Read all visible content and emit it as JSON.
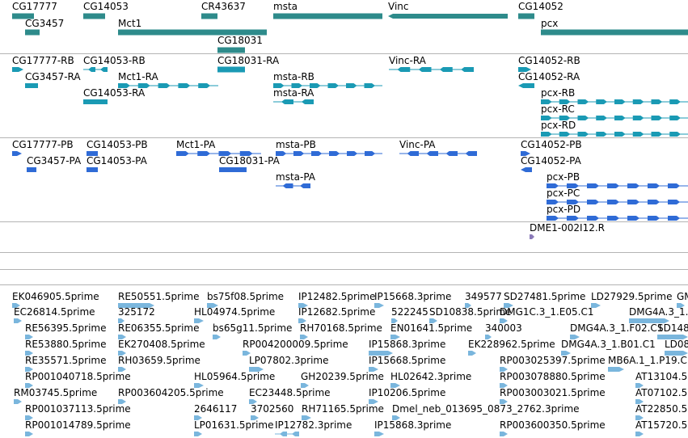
{
  "tracks": [
    {
      "id": "gene-span",
      "color": "#2e8b8b",
      "features": [
        {
          "label": "CG17777"
        },
        {
          "label": "CG14053"
        },
        {
          "label": "CR43637"
        },
        {
          "label": "msta"
        },
        {
          "label": "Vinc"
        },
        {
          "label": "CG14052"
        },
        {
          "label": "CG3457"
        },
        {
          "label": "Mct1"
        },
        {
          "label": "pcx"
        },
        {
          "label": "CG18031"
        }
      ]
    },
    {
      "id": "transcripts",
      "color": "#1a9ab4",
      "features": [
        {
          "label": "CG17777-RB"
        },
        {
          "label": "CG14053-RB"
        },
        {
          "label": "CG18031-RA"
        },
        {
          "label": "Vinc-RA"
        },
        {
          "label": "CG14052-RB"
        },
        {
          "label": "CG3457-RA"
        },
        {
          "label": "Mct1-RA"
        },
        {
          "label": "msta-RB"
        },
        {
          "label": "CG14052-RA"
        },
        {
          "label": "CG14053-RA"
        },
        {
          "label": "msta-RA"
        },
        {
          "label": "pcx-RB"
        },
        {
          "label": "pcx-RC"
        },
        {
          "label": "pcx-RD"
        }
      ]
    },
    {
      "id": "proteins",
      "color": "#2f6bd6",
      "features": [
        {
          "label": "CG17777-PB"
        },
        {
          "label": "CG14053-PB"
        },
        {
          "label": "Mct1-PA"
        },
        {
          "label": "msta-PB"
        },
        {
          "label": "Vinc-PA"
        },
        {
          "label": "CG14052-PB"
        },
        {
          "label": "CG3457-PA"
        },
        {
          "label": "CG14053-PA"
        },
        {
          "label": "CG18031-PA"
        },
        {
          "label": "CG14052-PA"
        },
        {
          "label": "pcx-PB"
        },
        {
          "label": "msta-PA"
        },
        {
          "label": "pcx-PC"
        },
        {
          "label": "pcx-PD"
        }
      ]
    },
    {
      "id": "clone",
      "color": "#8a7ab8",
      "features": [
        {
          "label": "DME1-002I12.R"
        }
      ]
    },
    {
      "id": "empty-1",
      "color": "#ffffff",
      "features": []
    },
    {
      "id": "ests",
      "color": "#7ab6dd",
      "features": [
        {
          "label": "EK046905.5prime"
        },
        {
          "label": "RE50551.5prime"
        },
        {
          "label": "bs75f08.5prime"
        },
        {
          "label": "IP12482.5prime"
        },
        {
          "label": "IP15668.3prime"
        },
        {
          "label": "349577"
        },
        {
          "label": "SD27481.5prime"
        },
        {
          "label": "LD27929.5prime"
        },
        {
          "label": "GM"
        },
        {
          "label": "EC26814.5prime"
        },
        {
          "label": "325172"
        },
        {
          "label": "HL04974.5prime"
        },
        {
          "label": "IP12682.5prime"
        },
        {
          "label": "522245"
        },
        {
          "label": "SD10838.5prime"
        },
        {
          "label": "DMG1C.3_1.E05.C1"
        },
        {
          "label": "DMG4A.3_1."
        },
        {
          "label": "RE56395.5prime"
        },
        {
          "label": "RE06355.5prime"
        },
        {
          "label": "bs65g11.5prime"
        },
        {
          "label": "RH70168.5prime"
        },
        {
          "label": "EN01641.5prime"
        },
        {
          "label": "340003"
        },
        {
          "label": "DMG4A.3_1.F02.C1"
        },
        {
          "label": "SD148"
        },
        {
          "label": "RE53880.5prime"
        },
        {
          "label": "EK270408.5prime"
        },
        {
          "label": "RP004200009.5prime"
        },
        {
          "label": "IP15868.3prime"
        },
        {
          "label": "EK228962.5prime"
        },
        {
          "label": "DMG4A.3_1.B01.C1"
        },
        {
          "label": "LD08"
        },
        {
          "label": "RE35571.5prime"
        },
        {
          "label": "RH03659.5prime"
        },
        {
          "label": "LP07802.3prime"
        },
        {
          "label": "IP15668.5prime"
        },
        {
          "label": "RP003025397.5prime"
        },
        {
          "label": "MB6A.1_1.P19.C1"
        },
        {
          "label": "RP001040718.5prime"
        },
        {
          "label": "HL05964.5prime"
        },
        {
          "label": "GH20239.5prime"
        },
        {
          "label": "HL02642.3prime"
        },
        {
          "label": "RP003078880.5prime"
        },
        {
          "label": "AT13104.5"
        },
        {
          "label": "RM03745.5prime"
        },
        {
          "label": "RP003604205.5prime"
        },
        {
          "label": "EC23448.5prime"
        },
        {
          "label": "IP10206.5prime"
        },
        {
          "label": "RP003003021.5prime"
        },
        {
          "label": "AT07102.5"
        },
        {
          "label": "RP001037113.5prime"
        },
        {
          "label": "2646117"
        },
        {
          "label": "3702560"
        },
        {
          "label": "RH71165.5prime"
        },
        {
          "label": "Dmel_neb_013695_0873_2762.3prime"
        },
        {
          "label": "AT22850.5"
        },
        {
          "label": "RP001014789.5prime"
        },
        {
          "label": "LP01631.5prime"
        },
        {
          "label": "IP12782.3prime"
        },
        {
          "label": "IP15868.3prime"
        },
        {
          "label": "RP003600350.5prime"
        },
        {
          "label": "AT15720.5"
        }
      ]
    }
  ]
}
